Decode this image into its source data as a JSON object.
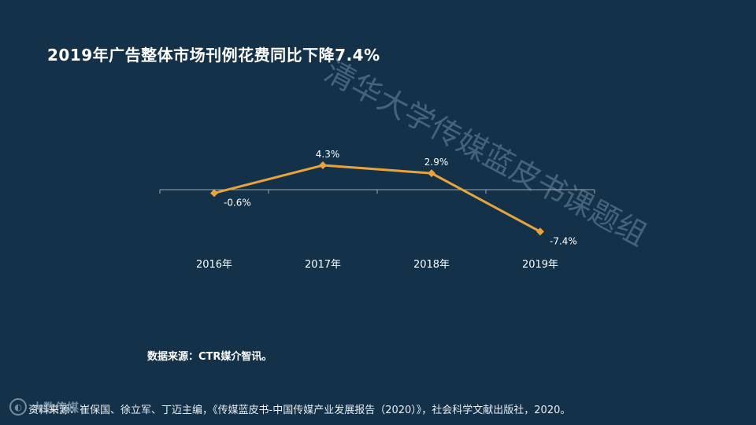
{
  "title": "2019年广告整体市场刊例花费同比下降7.4%",
  "watermark": "清华大学传媒蓝皮书课题组",
  "source": "数据来源：CTR媒介智讯。",
  "reference": "资料来源：崔保国、徐立军、丁迈主编，《传媒蓝皮书-中国传媒产业发展报告（2020）》，社会科学文献出版社，2020。",
  "logo": {
    "icon": "logo-circle-icon",
    "text": "大数传媒"
  },
  "colors": {
    "line": "#e8a33a",
    "axis": "#9aa8b4",
    "background": "#13324a"
  },
  "chart_data": {
    "type": "line",
    "categories": [
      "2016年",
      "2017年",
      "2018年",
      "2019年"
    ],
    "series": [
      {
        "values": [
          -0.6,
          4.3,
          2.9,
          -7.4
        ],
        "labels": [
          "-0.6%",
          "4.3%",
          "2.9%",
          "-7.4%"
        ]
      }
    ],
    "unit": "%",
    "xlabel": "",
    "ylabel": "",
    "grid": false
  }
}
